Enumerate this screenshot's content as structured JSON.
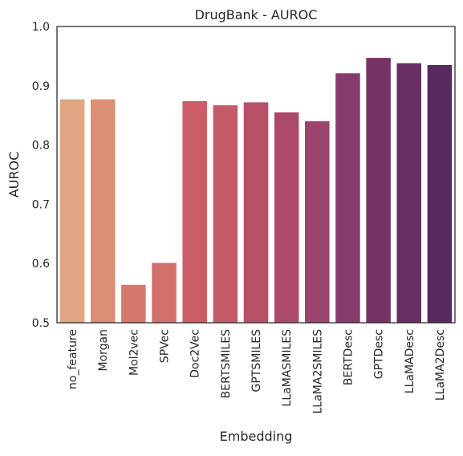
{
  "chart_data": {
    "type": "bar",
    "title": "DrugBank - AUROC",
    "xlabel": "Embedding",
    "ylabel": "AUROC",
    "ylim": [
      0.5,
      1.0
    ],
    "yticks": [
      "0.5",
      "0.6",
      "0.7",
      "0.8",
      "0.9",
      "1.0"
    ],
    "grid": false,
    "categories": [
      "no_feature",
      "Morgan",
      "Mol2vec",
      "SPVec",
      "Doc2Vec",
      "BERTSMILES",
      "GPTSMILES",
      "LLaMASMILES",
      "LLaMA2SMILES",
      "BERTDesc",
      "GPTDesc",
      "LLaMADesc",
      "LLaMA2Desc"
    ],
    "values": [
      0.877,
      0.877,
      0.564,
      0.601,
      0.874,
      0.867,
      0.872,
      0.855,
      0.84,
      0.921,
      0.947,
      0.938,
      0.935
    ],
    "colors": [
      "#e2a582",
      "#dc8f74",
      "#d6776c",
      "#d1706a",
      "#cd5d68",
      "#c55a67",
      "#b85068",
      "#ad4a6c",
      "#9b446e",
      "#873b6d",
      "#773365",
      "#672e62",
      "#562a5e"
    ]
  }
}
